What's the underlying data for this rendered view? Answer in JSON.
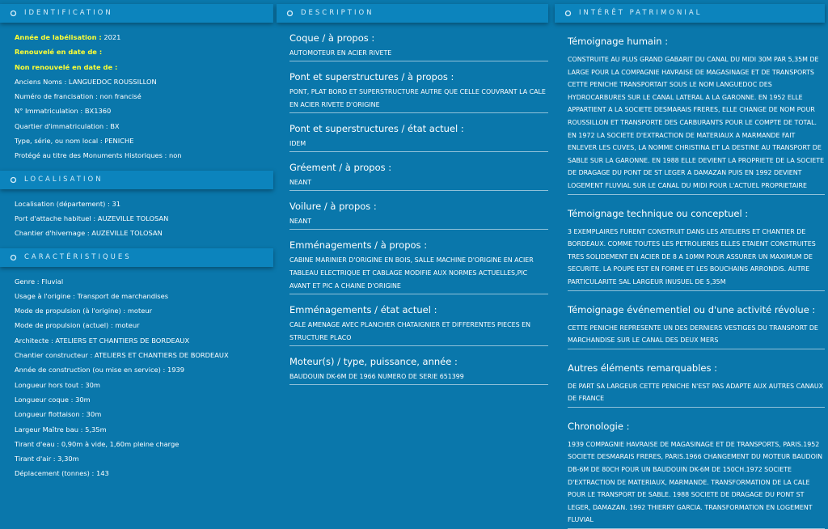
{
  "columns": [
    {
      "sections": [
        {
          "title": "IDENTIFICATION",
          "items": [
            {
              "label": "Année de labélisation :",
              "value": "2021"
            },
            {
              "label": "Renouvelé en date de :"
            },
            {
              "label": "Non renouvelé en date de :"
            },
            "Anciens Noms : LANGUEDOC ROUSSILLON",
            "Numéro de francisation : non francisé",
            "N° Immatriculation : BX1360",
            "Quartier d'immatriculation : BX",
            "Type, série, ou nom local : PENICHE",
            "Protégé au titre des Monuments Historiques : non"
          ]
        },
        {
          "title": "LOCALISATION",
          "items": [
            "Localisation (département) : 31",
            "Port d'attache habituel : AUZEVILLE TOLOSAN",
            "Chantier d'hivernage : AUZEVILLE TOLOSAN"
          ]
        },
        {
          "title": "CARACTÉRISTIQUES",
          "items": [
            "Genre : Fluvial",
            "Usage à l'origine : Transport de marchandises",
            "Mode de propulsion (à l'origine) : moteur",
            "Mode de propulsion (actuel) : moteur",
            "Architecte : ATELIERS ET CHANTIERS DE BORDEAUX",
            "Chantier constructeur : ATELIERS ET CHANTIERS DE BORDEAUX",
            "Année de construction (ou mise en service) : 1939",
            "Longueur hors tout : 30m",
            "Longueur coque : 30m",
            "Longueur flottaison : 30m",
            "Largeur Maître bau : 5,35m",
            "Tirant d'eau : 0,90m à vide, 1,60m pleine charge",
            "Tirant d'air : 3,30m",
            "Déplacement (tonnes) : 143"
          ]
        }
      ]
    },
    {
      "sections": [
        {
          "title": "DESCRIPTION",
          "entries": [
            {
              "heading": "Coque / à propos :",
              "text": "AUTOMOTEUR EN ACIER RIVETE"
            },
            {
              "heading": "Pont et superstructures / à propos :",
              "text": "PONT, PLAT BORD ET SUPERSTRUCTURE AUTRE QUE CELLE COUVRANT LA CALE EN ACIER RIVETE D'ORIGINE"
            },
            {
              "heading": "Pont et superstructures / état actuel :",
              "text": "IDEM"
            },
            {
              "heading": "Gréement / à propos :",
              "text": "NEANT"
            },
            {
              "heading": "Voilure / à propos :",
              "text": "NEANT"
            },
            {
              "heading": "Emménagements / à propos :",
              "text": "CABINE MARINIER D'ORIGINE EN BOIS, SALLE MACHINE D'ORIGINE EN ACIER TABLEAU ELECTRIQUE ET CABLAGE MODIFIE AUX NORMES ACTUELLES,PIC AVANT ET PIC A CHAINE D'ORIGINE"
            },
            {
              "heading": "Emménagements / état actuel :",
              "text": "CALE AMENAGE AVEC PLANCHER CHATAIGNIER ET DIFFERENTES PIECES EN STRUCTURE PLACO"
            },
            {
              "heading": "Moteur(s) / type, puissance, année :",
              "text": "BAUDOUIN DK-6M DE 1966 NUMERO DE SERIE 651399"
            }
          ]
        }
      ]
    },
    {
      "sections": [
        {
          "title": "INTÉRÊT PATRIMONIAL",
          "entries": [
            {
              "heading": "Témoignage humain :",
              "text": "CONSTRUITE AU PLUS GRAND GABARIT DU CANAL DU MIDI 30M PAR 5,35M DE LARGE POUR LA COMPAGNIE HAVRAISE DE MAGASINAGE ET DE TRANSPORTS CETTE PENICHE TRANSPORTAIT SOUS LE NOM LANGUEDOC DES HYDROCARBURES SUR LE CANAL LATERAL A LA GARONNE. EN 1952 ELLE APPARTIENT A LA SOCIETE DESMARAIS FRERES, ELLE CHANGE DE NOM POUR ROUSSILLON ET TRANSPORTE DES CARBURANTS POUR LE COMPTE DE TOTAL. EN 1972 LA SOCIETE D'EXTRACTION DE MATERIAUX A MARMANDE FAIT ENLEVER LES CUVES, LA NOMME CHRISTINA ET LA DESTINE AU TRANSPORT DE SABLE SUR LA GARONNE. EN 1988 ELLE DEVIENT LA PROPRIETE DE LA SOCIETE DE DRAGAGE DU PONT DE ST LEGER A DAMAZAN PUIS EN 1992 DEVIENT LOGEMENT FLUVIAL SUR LE CANAL DU MIDI POUR L'ACTUEL PROPRIETAIRE"
            },
            {
              "heading": "Témoignage technique ou conceptuel :",
              "text": "3 EXEMPLAIRES FURENT CONSTRUIT DANS LES ATELIERS ET CHANTIER DE BORDEAUX. COMME TOUTES LES PETROLIERES ELLES ETAIENT CONSTRUITES TRES SOLIDEMENT EN ACIER DE 8 A 10MM POUR ASSURER UN MAXIMUM DE SECURITE. LA POUPE EST EN FORME ET LES BOUCHAINS ARRONDIS. AUTRE PARTICULARITE SAL LARGEUR INUSUEL DE 5,35M"
            },
            {
              "heading": "Témoignage événementiel ou d'une activité révolue :",
              "text": "CETTE PENICHE REPRESENTE UN DES DERNIERS VESTIGES DU TRANSPORT DE MARCHANDISE SUR LE CANAL DES DEUX MERS"
            },
            {
              "heading": "Autres éléments remarquables :",
              "text": "DE PART SA LARGEUR CETTE PENICHE N'EST PAS ADAPTE AUX AUTRES CANAUX DE FRANCE"
            },
            {
              "heading": "Chronologie :",
              "text": "1939 COMPAGNIE HAVRAISE DE MAGASINAGE ET DE TRANSPORTS, PARIS.1952 SOCIETE DESMARAIS FRERES, PARIS.1966 CHANGEMENT DU MOTEUR BAUDOIN DB-6M DE 80CH POUR UN BAUDOUIN DK-6M DE 150CH.1972 SOCIETE D'EXTRACTION DE MATERIAUX, MARMANDE. TRANSFORMATION DE LA CALE POUR LE TRANSPORT DE SABLE. 1988 SOCIETE DE DRAGAGE DU PONT ST LEGER, DAMAZAN. 1992 THIERRY GARCIA. TRANSFORMATION EN LOGEMENT FLUVIAL"
            }
          ]
        }
      ]
    }
  ]
}
